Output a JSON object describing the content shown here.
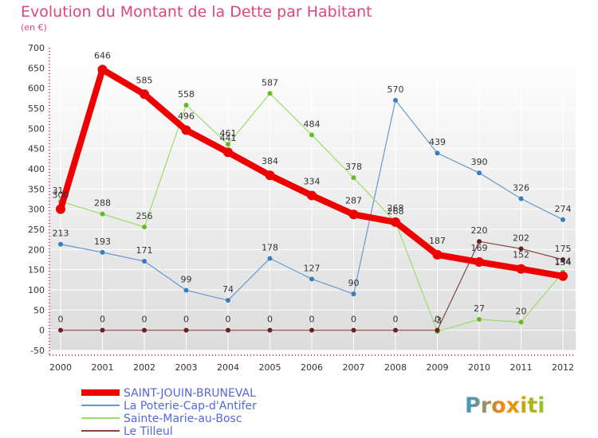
{
  "title": "Evolution du Montant de la Dette par Habitant",
  "subtitle": "(en €)",
  "colors": {
    "title": "#e0457a",
    "plot_bg_top": "#ffffff",
    "plot_bg_bottom": "#dcdcdc",
    "grid": "#ffffff",
    "axis_red": "#e0002a",
    "tick_text": "#333333",
    "label_text": "#333333",
    "legend_text": "#5566dd"
  },
  "logo_text": "Proxiti",
  "chart_data": {
    "type": "line",
    "title": "Evolution du Montant de la Dette par Habitant",
    "ylabel": "(en €)",
    "xlabel": "",
    "x": [
      "2000",
      "2001",
      "2002",
      "2003",
      "2004",
      "2005",
      "2006",
      "2007",
      "2008",
      "2009",
      "2010",
      "2011",
      "2012"
    ],
    "ylim": [
      -50,
      700
    ],
    "yticks": [
      -50,
      0,
      50,
      100,
      150,
      200,
      250,
      300,
      350,
      400,
      450,
      500,
      550,
      600,
      650,
      700
    ],
    "grid": true,
    "legend_position": "bottom-left",
    "series": [
      {
        "name": "SAINT-JOUIN-BRUNEVAL",
        "color": "#ee0000",
        "dot": "#ee0000",
        "width": 8,
        "values": [
          300,
          646,
          585,
          496,
          441,
          384,
          334,
          287,
          268,
          187,
          169,
          152,
          134
        ],
        "labels": [
          "300",
          "646",
          "585",
          "496",
          "441",
          "384",
          "334",
          "287",
          "268",
          "187",
          "169",
          "152",
          "134"
        ]
      },
      {
        "name": "La Poterie-Cap-d'Antifer",
        "color": "#6699cc",
        "dot": "#3a7cc0",
        "width": 1.2,
        "values": [
          213,
          193,
          171,
          99,
          74,
          178,
          127,
          90,
          570,
          439,
          390,
          326,
          274
        ],
        "labels": [
          "213",
          "193",
          "171",
          "99",
          "74",
          "178",
          "127",
          "90",
          "570",
          "439",
          "390",
          "326",
          "274"
        ]
      },
      {
        "name": "Sainte-Marie-au-Bosc",
        "color": "#99dd66",
        "dot": "#66bb22",
        "width": 1.2,
        "values": [
          319,
          288,
          256,
          558,
          461,
          587,
          484,
          378,
          268,
          -3,
          27,
          20,
          144
        ],
        "labels": [
          "319",
          "288",
          "256",
          "558",
          "461",
          "587",
          "484",
          "378",
          "268",
          "-3",
          "27",
          "20",
          "144"
        ]
      },
      {
        "name": "Le Tilleul",
        "color": "#884444",
        "dot": "#662222",
        "width": 1.2,
        "values": [
          0,
          0,
          0,
          0,
          0,
          0,
          0,
          0,
          0,
          0,
          220,
          202,
          175
        ],
        "labels": [
          "0",
          "0",
          "0",
          "0",
          "0",
          "0",
          "0",
          "0",
          "0",
          "0",
          "220",
          "202",
          "175"
        ]
      }
    ]
  }
}
